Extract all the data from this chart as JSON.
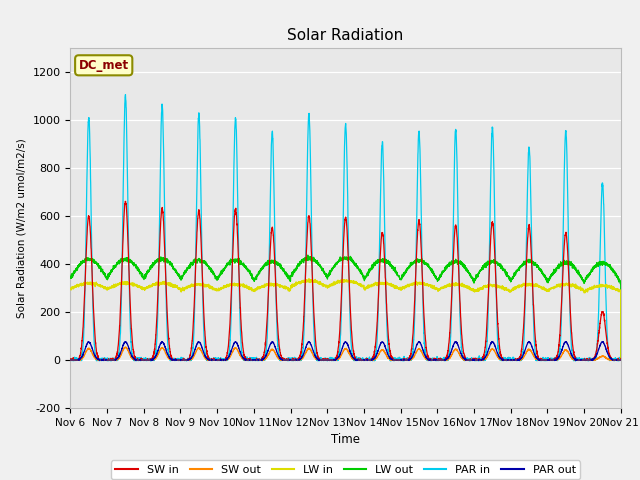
{
  "title": "Solar Radiation",
  "ylabel": "Solar Radiation (W/m2 umol/m2/s)",
  "xlabel": "Time",
  "ylim": [
    -200,
    1300
  ],
  "yticks": [
    -200,
    0,
    200,
    400,
    600,
    800,
    1000,
    1200
  ],
  "x_tick_labels": [
    "Nov 6",
    "Nov 7",
    "Nov 8",
    "Nov 9",
    "Nov 10",
    "Nov 11",
    "Nov 12",
    "Nov 13",
    "Nov 14",
    "Nov 15",
    "Nov 16",
    "Nov 17",
    "Nov 18",
    "Nov 19",
    "Nov 20",
    "Nov 21"
  ],
  "fig_bg_color": "#f0f0f0",
  "plot_bg_color": "#e8e8e8",
  "grid_color": "#ffffff",
  "station_label": "DC_met",
  "station_label_color": "#8B0000",
  "station_box_facecolor": "#ffffc8",
  "station_box_edgecolor": "#8B8B00",
  "colors": {
    "SW_in": "#dd0000",
    "SW_out": "#ff8800",
    "LW_in": "#dddd00",
    "LW_out": "#00cc00",
    "PAR_in": "#00ccee",
    "PAR_out": "#0000aa"
  },
  "legend_entries": [
    "SW in",
    "SW out",
    "LW in",
    "LW out",
    "PAR in",
    "PAR out"
  ],
  "n_days": 15,
  "points_per_day": 288,
  "sw_in_peaks": [
    600,
    660,
    630,
    620,
    625,
    550,
    600,
    595,
    530,
    580,
    560,
    575,
    555,
    530,
    200
  ],
  "par_in_peaks": [
    1010,
    1100,
    1060,
    1025,
    1010,
    950,
    1025,
    980,
    905,
    950,
    960,
    970,
    885,
    950,
    740
  ],
  "lw_in_night": [
    295,
    295,
    295,
    290,
    290,
    290,
    305,
    305,
    295,
    295,
    290,
    285,
    290,
    290,
    285
  ],
  "lw_out_night": [
    340,
    340,
    340,
    335,
    335,
    330,
    345,
    345,
    335,
    335,
    330,
    330,
    330,
    325,
    325
  ]
}
